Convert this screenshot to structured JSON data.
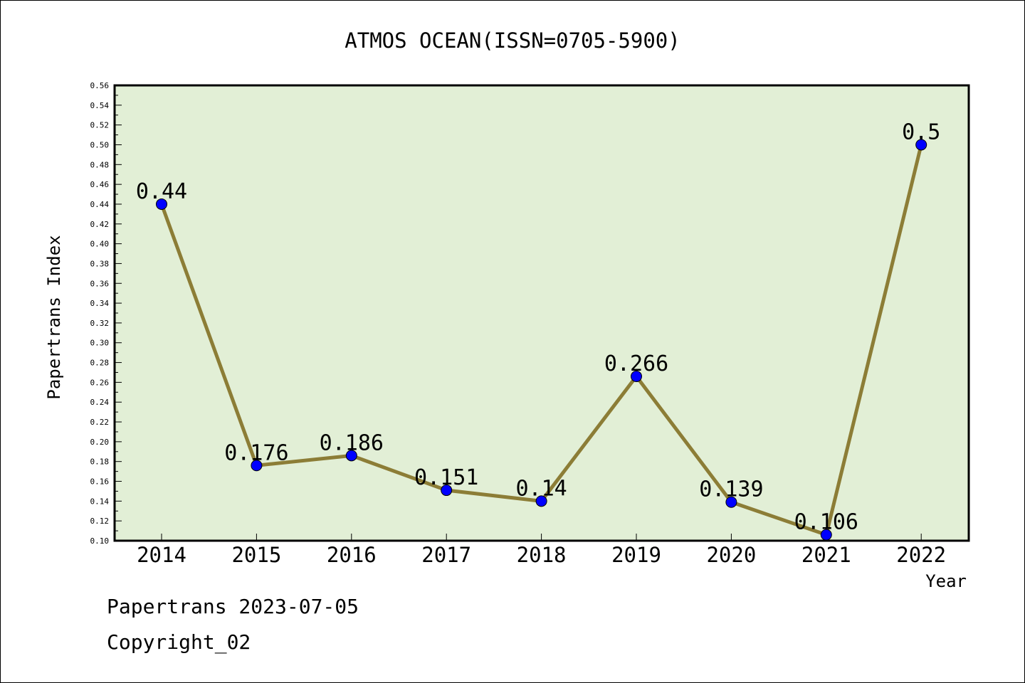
{
  "chart_data": {
    "type": "line",
    "title": "ATMOS OCEAN(ISSN=0705-5900)",
    "xlabel": "Year",
    "ylabel": "Papertrans Index",
    "categories": [
      "2014",
      "2015",
      "2016",
      "2017",
      "2018",
      "2019",
      "2020",
      "2021",
      "2022"
    ],
    "series": [
      {
        "values": [
          0.44,
          0.176,
          0.186,
          0.151,
          0.14,
          0.266,
          0.139,
          0.106,
          0.5
        ]
      }
    ],
    "data_labels": [
      "0.44",
      "0.176",
      "0.186",
      "0.151",
      "0.14",
      "0.266",
      "0.139",
      "0.106",
      "0.5"
    ],
    "ylim": [
      0.1,
      0.56
    ],
    "ytick_step": 0.02,
    "grid": false,
    "legend": "none",
    "colors": {
      "plot_background": "#e2efd6",
      "line": "#8c7d36",
      "marker": "#0000ff"
    }
  },
  "footer": {
    "line1": "Papertrans 2023-07-05",
    "line2": "Copyright_02"
  }
}
